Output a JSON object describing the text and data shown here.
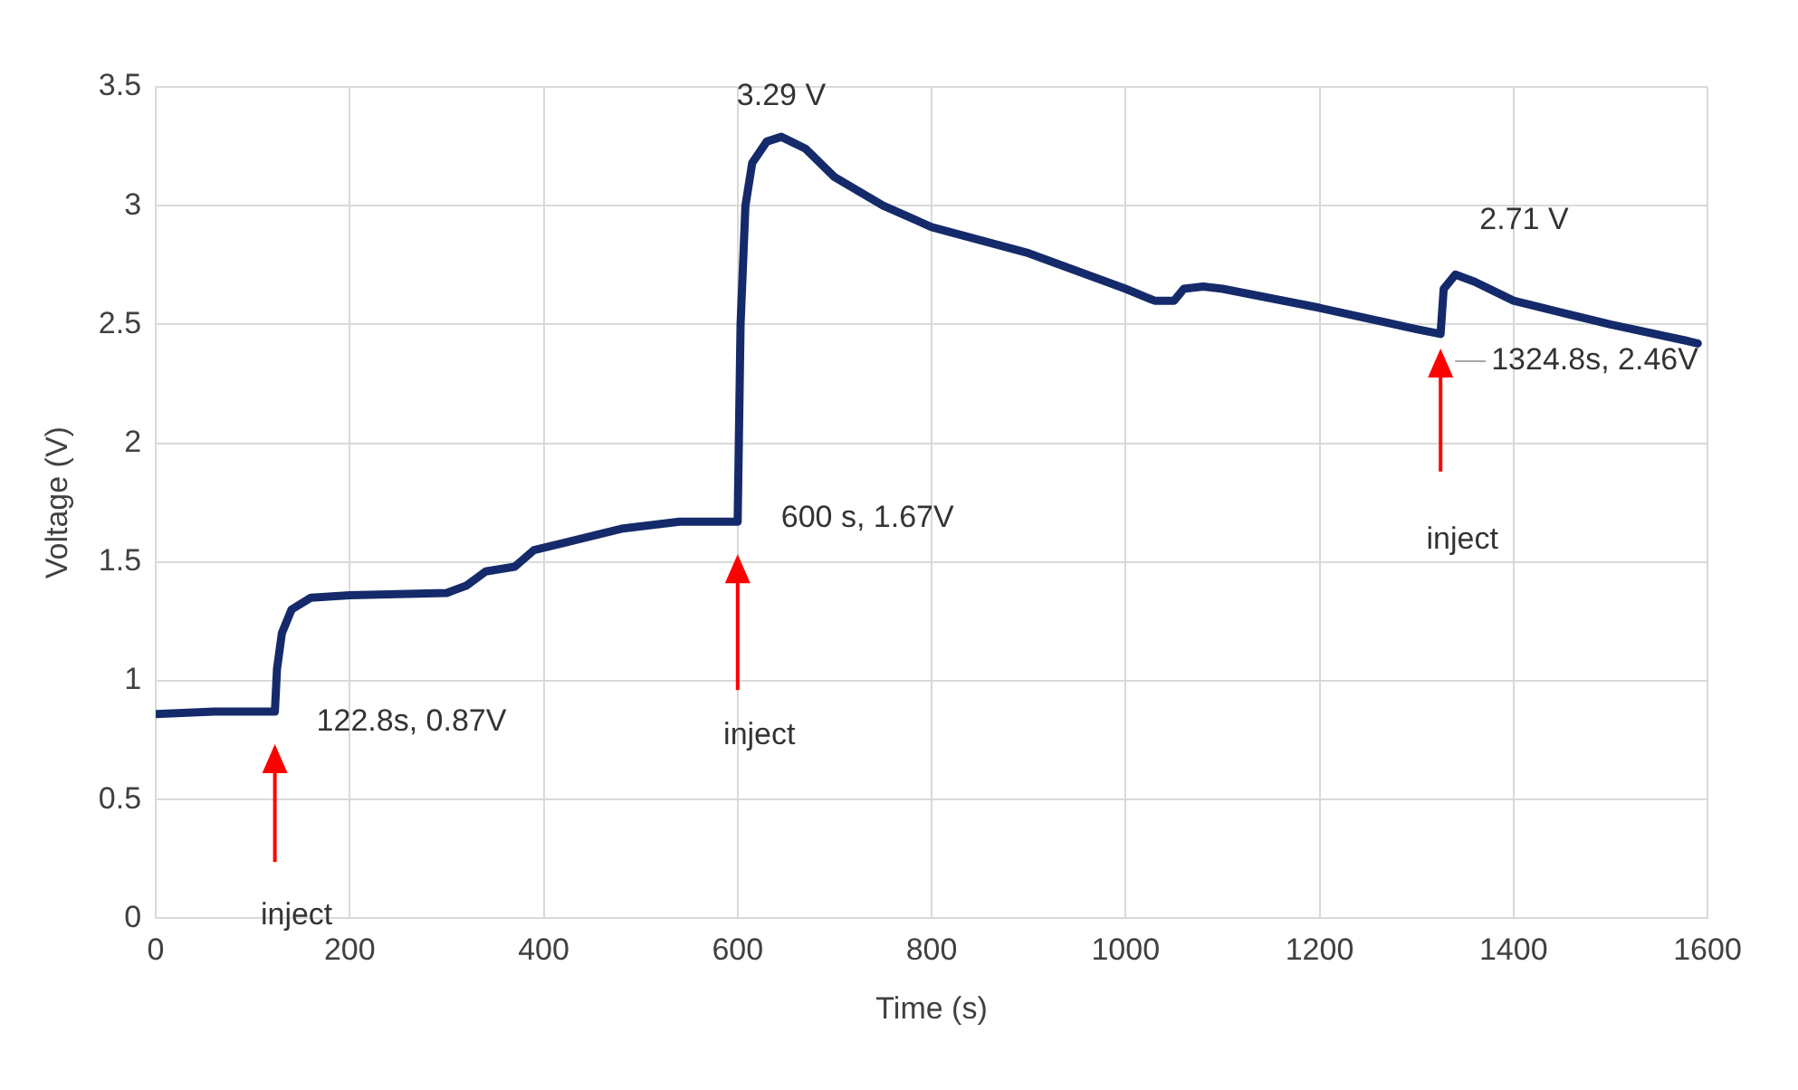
{
  "chart_data": {
    "type": "line",
    "xlabel": "Time (s)",
    "ylabel": "Voltage (V)",
    "x": [
      0,
      60,
      120,
      122.8,
      125,
      130,
      140,
      160,
      200,
      300,
      320,
      340,
      370,
      390,
      420,
      480,
      540,
      600,
      603,
      608,
      615,
      630,
      645,
      670,
      700,
      750,
      800,
      900,
      1000,
      1030,
      1050,
      1060,
      1080,
      1100,
      1200,
      1300,
      1324.8,
      1328,
      1340,
      1360,
      1400,
      1450,
      1500,
      1580,
      1590
    ],
    "series": [
      {
        "color": "#142a6a",
        "values": [
          0.86,
          0.87,
          0.87,
          0.87,
          1.05,
          1.2,
          1.3,
          1.35,
          1.36,
          1.37,
          1.4,
          1.46,
          1.48,
          1.55,
          1.58,
          1.64,
          1.67,
          1.67,
          2.5,
          3.0,
          3.18,
          3.27,
          3.29,
          3.24,
          3.12,
          3.0,
          2.91,
          2.8,
          2.65,
          2.6,
          2.6,
          2.65,
          2.66,
          2.65,
          2.57,
          2.48,
          2.46,
          2.65,
          2.71,
          2.68,
          2.6,
          2.55,
          2.5,
          2.43,
          2.42
        ]
      }
    ],
    "xlim": [
      0,
      1600
    ],
    "xticks": [
      0,
      200,
      400,
      600,
      800,
      1000,
      1200,
      1400,
      1600
    ],
    "ylim": [
      0,
      3.5
    ],
    "yticks": [
      0,
      0.5,
      1,
      1.5,
      2,
      2.5,
      3,
      3.5
    ],
    "grid": true,
    "legend": false,
    "marker": "none",
    "line_style": "solid",
    "annotations": [
      {
        "text": "3.29 V",
        "x": 645,
        "y": 3.29
      },
      {
        "text": "122.8s, 0.87V",
        "x": 122.8,
        "y": 0.87
      },
      "inject",
      {
        "text": "600 s, 1.67V",
        "x": 600,
        "y": 1.67
      },
      "inject",
      {
        "text": "2.71 V",
        "x": 1340,
        "y": 2.71
      },
      {
        "text": "1324.8s, 2.46V",
        "x": 1324.8,
        "y": 2.46
      },
      "inject"
    ]
  }
}
